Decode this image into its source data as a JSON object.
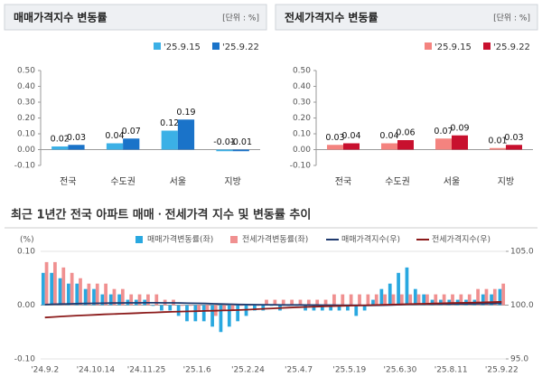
{
  "chart_data": [
    {
      "type": "bar",
      "title": "매매가격지수 변동률",
      "unit": "[단위 : %]",
      "categories": [
        "전국",
        "수도권",
        "서울",
        "지방"
      ],
      "series": [
        {
          "name": "'25.9.15",
          "color": "#3bb0e6",
          "values": [
            0.02,
            0.04,
            0.12,
            -0.01
          ]
        },
        {
          "name": "'25.9.22",
          "color": "#1a73c9",
          "values": [
            0.03,
            0.07,
            0.19,
            -0.01
          ]
        }
      ],
      "ylim": [
        -0.1,
        0.5
      ],
      "yticks": [
        {
          "value": -0.1,
          "label": "-0.10"
        },
        {
          "value": 0,
          "label": "0.00"
        },
        {
          "value": 0.1,
          "label": "0.10"
        },
        {
          "value": 0.2,
          "label": "0.20"
        },
        {
          "value": 0.3,
          "label": "0.30"
        },
        {
          "value": 0.4,
          "label": "0.40"
        },
        {
          "value": 0.5,
          "label": "0.50"
        }
      ]
    },
    {
      "type": "bar",
      "title": "전세가격지수 변동률",
      "unit": "[단위 : %]",
      "categories": [
        "전국",
        "수도권",
        "서울",
        "지방"
      ],
      "series": [
        {
          "name": "'25.9.15",
          "color": "#f4837f",
          "values": [
            0.03,
            0.04,
            0.07,
            0.01
          ]
        },
        {
          "name": "'25.9.22",
          "color": "#c8102e",
          "values": [
            0.04,
            0.06,
            0.09,
            0.03
          ]
        }
      ],
      "ylim": [
        -0.1,
        0.5
      ],
      "yticks": [
        {
          "value": -0.1,
          "label": "-0.10"
        },
        {
          "value": 0,
          "label": "0.00"
        },
        {
          "value": 0.1,
          "label": "0.10"
        },
        {
          "value": 0.2,
          "label": "0.20"
        },
        {
          "value": 0.3,
          "label": "0.30"
        },
        {
          "value": 0.4,
          "label": "0.40"
        },
        {
          "value": 0.5,
          "label": "0.50"
        }
      ]
    },
    {
      "type": "combo",
      "title": "최근 1년간 전국 아파트 매매ㆍ전세가격 지수 및 변동률 추이",
      "y_label": "(%)",
      "categories": [
        "'24.9.2",
        null,
        null,
        null,
        null,
        null,
        "'24.10.14",
        null,
        null,
        null,
        null,
        null,
        "'24.11.25",
        null,
        null,
        null,
        null,
        null,
        "'25.1.6",
        null,
        null,
        null,
        null,
        null,
        "'25.2.24",
        null,
        null,
        null,
        null,
        null,
        "'25.4.7",
        null,
        null,
        null,
        null,
        null,
        "'25.5.19",
        null,
        null,
        null,
        null,
        null,
        "'25.6.30",
        null,
        null,
        null,
        null,
        null,
        "'25.8.11",
        null,
        null,
        null,
        null,
        null,
        "'25.9.22"
      ],
      "series": [
        {
          "name": "매매가격변동률(좌)",
          "type": "bar",
          "color": "#29a8e0",
          "values": [
            0.06,
            0.06,
            0.05,
            0.04,
            0.04,
            0.03,
            0.03,
            0.02,
            0.02,
            0.02,
            0.01,
            0.01,
            0.01,
            0.0,
            -0.01,
            -0.01,
            -0.02,
            -0.03,
            -0.03,
            -0.03,
            -0.04,
            -0.05,
            -0.04,
            -0.03,
            -0.02,
            -0.01,
            -0.01,
            0.0,
            -0.01,
            0.0,
            0.0,
            -0.01,
            -0.01,
            -0.01,
            -0.01,
            -0.01,
            -0.01,
            -0.02,
            -0.01,
            0.01,
            0.03,
            0.04,
            0.06,
            0.07,
            0.03,
            0.02,
            0.01,
            0.01,
            0.01,
            0.01,
            0.01,
            0.01,
            0.02,
            0.02,
            0.03
          ]
        },
        {
          "name": "전세가격변동률(좌)",
          "type": "bar",
          "color": "#f09090",
          "values": [
            0.08,
            0.08,
            0.07,
            0.06,
            0.05,
            0.04,
            0.04,
            0.04,
            0.03,
            0.03,
            0.02,
            0.02,
            0.02,
            0.02,
            0.01,
            0.01,
            0.0,
            0.0,
            -0.01,
            -0.01,
            -0.02,
            -0.01,
            -0.01,
            0.0,
            0.0,
            0.0,
            0.01,
            0.01,
            0.01,
            0.01,
            0.01,
            0.01,
            0.01,
            0.01,
            0.02,
            0.02,
            0.02,
            0.02,
            0.02,
            0.02,
            0.02,
            0.02,
            0.02,
            0.02,
            0.02,
            0.02,
            0.02,
            0.02,
            0.02,
            0.02,
            0.02,
            0.03,
            0.03,
            0.03,
            0.04
          ]
        },
        {
          "name": "매매가격지수(우)",
          "type": "line",
          "axis": "y2",
          "color": "#1f3a6e",
          "values": [
            100.05,
            100.08,
            100.1,
            100.12,
            100.14,
            100.16,
            100.17,
            100.18,
            100.19,
            100.2,
            100.21,
            100.21,
            100.22,
            100.22,
            100.21,
            100.21,
            100.2,
            100.18,
            100.17,
            100.15,
            100.13,
            100.1,
            100.08,
            100.06,
            100.05,
            100.04,
            100.03,
            100.03,
            100.02,
            100.02,
            100.02,
            100.01,
            100.01,
            100.0,
            100.0,
            99.99,
            99.99,
            99.98,
            99.97,
            99.98,
            99.99,
            100.01,
            100.04,
            100.08,
            100.09,
            100.1,
            100.1,
            100.11,
            100.11,
            100.12,
            100.12,
            100.13,
            100.14,
            100.15,
            100.17
          ]
        },
        {
          "name": "전세가격지수(우)",
          "type": "line",
          "axis": "y2",
          "color": "#8b1a1a",
          "values": [
            98.85,
            98.9,
            98.95,
            98.99,
            99.03,
            99.07,
            99.1,
            99.14,
            99.17,
            99.2,
            99.23,
            99.26,
            99.29,
            99.32,
            99.35,
            99.38,
            99.4,
            99.42,
            99.44,
            99.46,
            99.48,
            99.5,
            99.52,
            99.55,
            99.58,
            99.62,
            99.66,
            99.7,
            99.74,
            99.77,
            99.8,
            99.83,
            99.86,
            99.89,
            99.91,
            99.93,
            99.95,
            99.97,
            99.99,
            100.01,
            100.03,
            100.05,
            100.07,
            100.09,
            100.11,
            100.13,
            100.15,
            100.17,
            100.19,
            100.21,
            100.22,
            100.24,
            100.26,
            100.28,
            100.31
          ]
        }
      ],
      "ylim": [
        -0.1,
        0.1
      ],
      "yticks": [
        {
          "value": -0.1,
          "label": "-0.10"
        },
        {
          "value": 0,
          "label": "0.00"
        },
        {
          "value": 0.1,
          "label": "0.10"
        }
      ],
      "y2lim": [
        95,
        105
      ],
      "y2ticks": [
        {
          "value": 95,
          "label": "95.0"
        },
        {
          "value": 100,
          "label": "100.0"
        },
        {
          "value": 105,
          "label": "105.0"
        }
      ]
    }
  ]
}
